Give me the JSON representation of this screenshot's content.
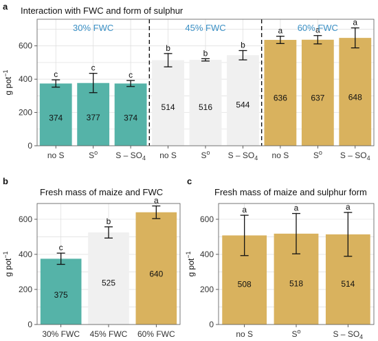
{
  "colors": {
    "teal": "#55b3a8",
    "light": "#f0f0f0",
    "gold": "#d9b25e",
    "group_label": "#3a8fc4"
  },
  "chart_data": [
    {
      "panel": "a",
      "type": "bar",
      "title": "Interaction with FWC and form of sulphur",
      "ylabel": "g pot",
      "ylabel_sup": "−1",
      "ylim": [
        0,
        760
      ],
      "yticks": [
        "0",
        "200",
        "400",
        "600"
      ],
      "ytick_values": [
        0,
        200,
        400,
        600
      ],
      "groups": [
        "30% FWC",
        "45% FWC",
        "60% FWC"
      ],
      "bars": [
        {
          "label": "no S",
          "value": 374,
          "err": 22,
          "sig": "c",
          "color": "teal",
          "value_label": "374"
        },
        {
          "label": "S°",
          "value": 377,
          "err": 58,
          "sig": "c",
          "color": "teal",
          "value_label": "377"
        },
        {
          "label": "S – SO4",
          "value": 374,
          "err": 18,
          "sig": "c",
          "color": "teal",
          "value_label": "374"
        },
        {
          "label": "no S",
          "value": 514,
          "err": 40,
          "sig": "b",
          "color": "light",
          "value_label": "514"
        },
        {
          "label": "S°",
          "value": 516,
          "err": 7,
          "sig": "b",
          "color": "light",
          "value_label": "516"
        },
        {
          "label": "S – SO4",
          "value": 544,
          "err": 28,
          "sig": "b",
          "color": "light",
          "value_label": "544"
        },
        {
          "label": "no S",
          "value": 636,
          "err": 22,
          "sig": "a",
          "color": "gold",
          "value_label": "636"
        },
        {
          "label": "S°",
          "value": 637,
          "err": 25,
          "sig": "a",
          "color": "gold",
          "value_label": "637"
        },
        {
          "label": "S – SO4",
          "value": 648,
          "err": 60,
          "sig": "a",
          "color": "gold",
          "value_label": "648"
        }
      ]
    },
    {
      "panel": "b",
      "type": "bar",
      "title": "Fresh mass of maize and FWC",
      "ylabel": "g pot",
      "ylabel_sup": "−1",
      "ylim": [
        0,
        690
      ],
      "yticks": [
        "0",
        "200",
        "400",
        "600"
      ],
      "ytick_values": [
        0,
        200,
        400,
        600
      ],
      "bars": [
        {
          "label": "30% FWC",
          "value": 375,
          "err": 32,
          "sig": "c",
          "color": "teal",
          "value_label": "375"
        },
        {
          "label": "45% FWC",
          "value": 525,
          "err": 32,
          "sig": "b",
          "color": "light",
          "value_label": "525"
        },
        {
          "label": "60% FWC",
          "value": 640,
          "err": 36,
          "sig": "a",
          "color": "gold",
          "value_label": "640"
        }
      ]
    },
    {
      "panel": "c",
      "type": "bar",
      "title": "Fresh mass of maize and sulphur form",
      "ylabel": "g pot",
      "ylabel_sup": "−1",
      "ylim": [
        0,
        690
      ],
      "yticks": [
        "0",
        "200",
        "400",
        "600"
      ],
      "ytick_values": [
        0,
        200,
        400,
        600
      ],
      "bars": [
        {
          "label": "no S",
          "value": 508,
          "err": 115,
          "sig": "a",
          "color": "gold",
          "value_label": "508"
        },
        {
          "label": "S°",
          "value": 518,
          "err": 115,
          "sig": "a",
          "color": "gold",
          "value_label": "518"
        },
        {
          "label": "S – SO4",
          "value": 514,
          "err": 125,
          "sig": "a",
          "color": "gold",
          "value_label": "514"
        }
      ]
    }
  ]
}
